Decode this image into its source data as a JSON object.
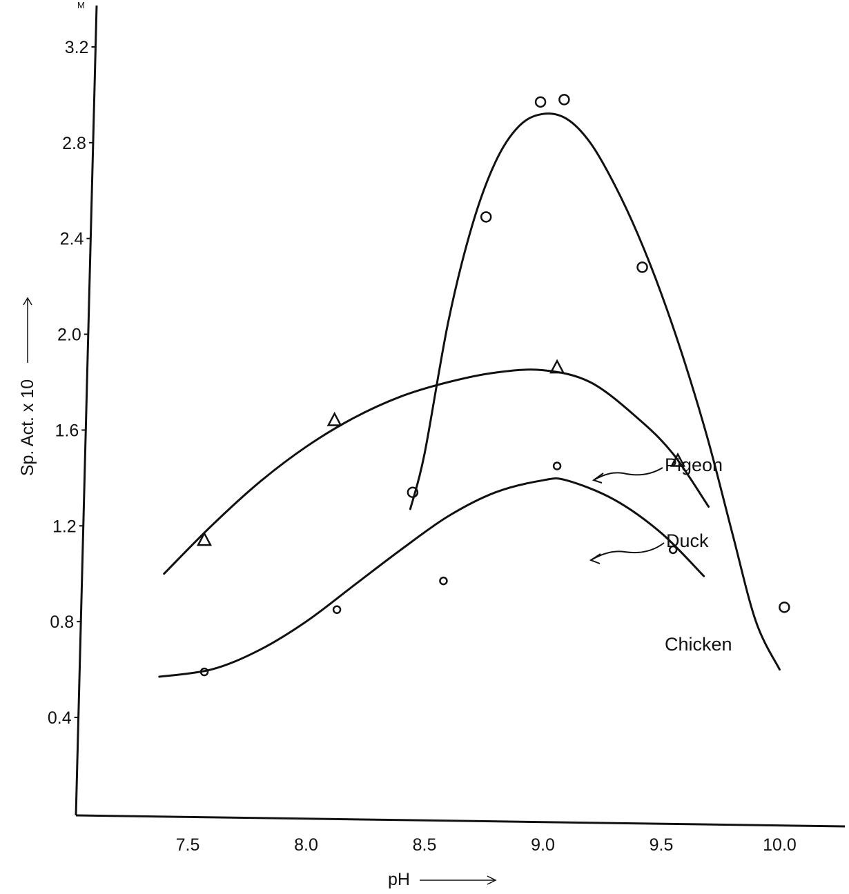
{
  "chart_data": {
    "type": "scatter",
    "title": "",
    "xlabel": "pH",
    "ylabel": "Sp. Act. x 10",
    "y_unit_mark": "M",
    "xlim": [
      7.0,
      10.5
    ],
    "ylim": [
      0.0,
      3.3
    ],
    "x_ticks": [
      "7.5",
      "8.0",
      "8.5",
      "9.0",
      "9.5",
      "10.0"
    ],
    "y_ticks": [
      "0.4",
      "0.8",
      "1.2",
      "1.6",
      "2.0",
      "2.4",
      "2.8",
      "3.2"
    ],
    "grid": false,
    "legend": "none; series labelled directly on the right with arrows",
    "series": [
      {
        "name": "Chicken",
        "marker": "circle",
        "points": [
          [
            8.45,
            1.34
          ],
          [
            8.76,
            2.49
          ],
          [
            8.99,
            2.97
          ],
          [
            9.09,
            2.98
          ],
          [
            9.42,
            2.28
          ],
          [
            10.02,
            0.86
          ]
        ],
        "curve": [
          [
            8.44,
            1.27
          ],
          [
            8.5,
            1.5
          ],
          [
            8.6,
            2.05
          ],
          [
            8.7,
            2.45
          ],
          [
            8.8,
            2.72
          ],
          [
            8.9,
            2.87
          ],
          [
            9.0,
            2.92
          ],
          [
            9.1,
            2.9
          ],
          [
            9.2,
            2.8
          ],
          [
            9.3,
            2.63
          ],
          [
            9.4,
            2.42
          ],
          [
            9.5,
            2.17
          ],
          [
            9.6,
            1.88
          ],
          [
            9.7,
            1.55
          ],
          [
            9.8,
            1.17
          ],
          [
            9.9,
            0.8
          ],
          [
            10.0,
            0.6
          ]
        ]
      },
      {
        "name": "Pigeon",
        "marker": "triangle",
        "points": [
          [
            7.57,
            1.14
          ],
          [
            8.12,
            1.64
          ],
          [
            9.06,
            1.86
          ],
          [
            9.57,
            1.47
          ]
        ],
        "curve": [
          [
            7.4,
            1.0
          ],
          [
            7.6,
            1.2
          ],
          [
            7.8,
            1.38
          ],
          [
            8.0,
            1.53
          ],
          [
            8.2,
            1.65
          ],
          [
            8.4,
            1.74
          ],
          [
            8.6,
            1.8
          ],
          [
            8.8,
            1.84
          ],
          [
            9.0,
            1.85
          ],
          [
            9.2,
            1.8
          ],
          [
            9.4,
            1.65
          ],
          [
            9.55,
            1.5
          ],
          [
            9.7,
            1.28
          ]
        ]
      },
      {
        "name": "Duck",
        "marker": "small-circle",
        "points": [
          [
            7.57,
            0.59
          ],
          [
            8.13,
            0.85
          ],
          [
            8.58,
            0.97
          ],
          [
            9.06,
            1.45
          ],
          [
            9.55,
            1.1
          ]
        ],
        "curve": [
          [
            7.38,
            0.57
          ],
          [
            7.6,
            0.6
          ],
          [
            7.8,
            0.68
          ],
          [
            8.0,
            0.8
          ],
          [
            8.2,
            0.95
          ],
          [
            8.4,
            1.1
          ],
          [
            8.6,
            1.24
          ],
          [
            8.8,
            1.34
          ],
          [
            9.0,
            1.39
          ],
          [
            9.1,
            1.39
          ],
          [
            9.3,
            1.31
          ],
          [
            9.5,
            1.17
          ],
          [
            9.68,
            0.99
          ]
        ]
      }
    ]
  }
}
